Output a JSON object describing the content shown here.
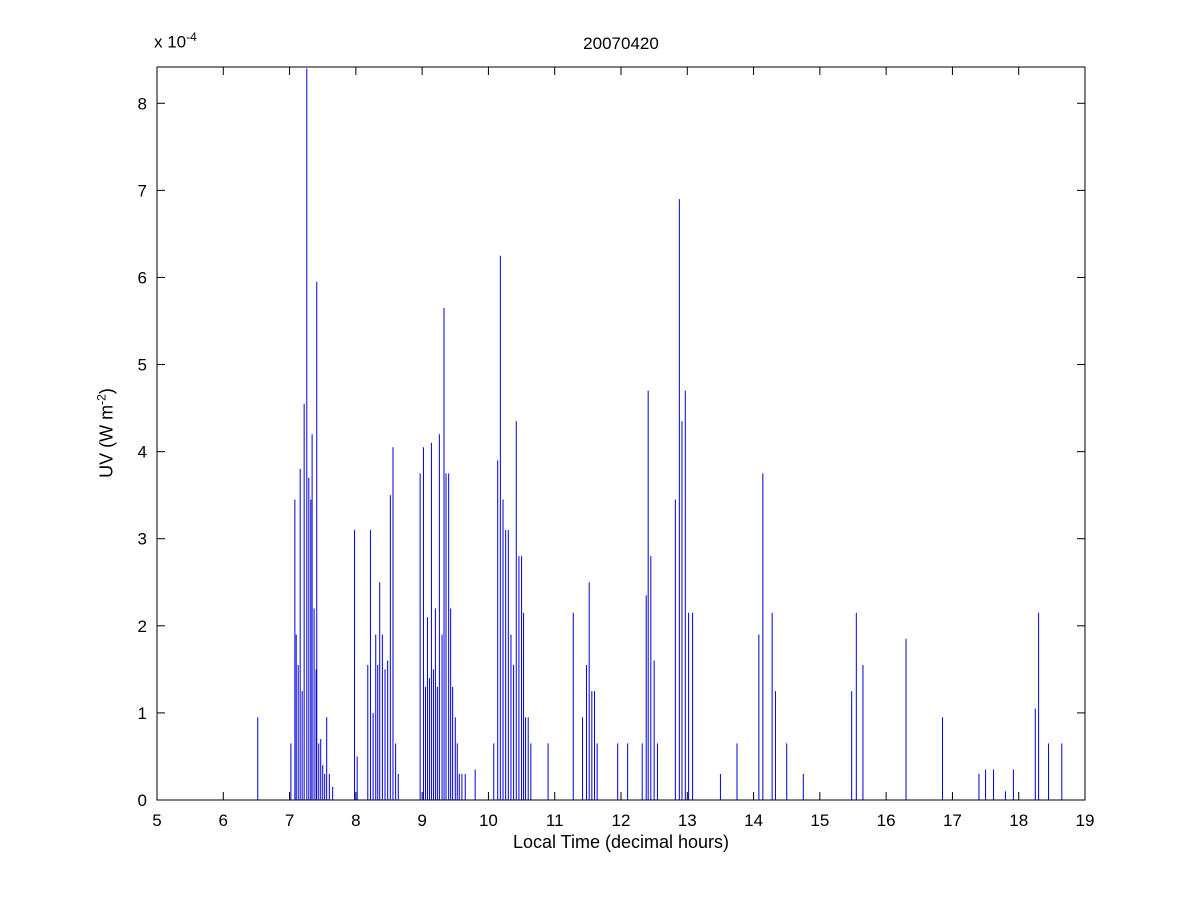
{
  "figure": {
    "title": "20070420",
    "xlabel": "Local Time (decimal hours)",
    "ylabel_pre": "UV (W m",
    "ylabel_sup": "-2",
    "ylabel_post": ")",
    "exponent_base": "x 10",
    "exponent_sup": "-4"
  },
  "chart_data": {
    "type": "stem",
    "title": "20070420",
    "xlabel": "Local Time (decimal hours)",
    "ylabel": "UV (W m^-2)",
    "y_unit": "1e-4 W m^-2",
    "xlim": [
      5,
      19
    ],
    "ylim": [
      0,
      8.4166
    ],
    "xticks": [
      5,
      6,
      7,
      8,
      9,
      10,
      11,
      12,
      13,
      14,
      15,
      16,
      17,
      18,
      19
    ],
    "yticks": [
      0,
      1,
      2,
      3,
      4,
      5,
      6,
      7,
      8
    ],
    "grid": false,
    "legend": false,
    "line_color": "#0000dd",
    "axis_color": "#000000",
    "points": [
      [
        6.52,
        0.95
      ],
      [
        7.02,
        0.65
      ],
      [
        7.08,
        3.45
      ],
      [
        7.1,
        1.9
      ],
      [
        7.13,
        1.55
      ],
      [
        7.16,
        3.8
      ],
      [
        7.19,
        1.25
      ],
      [
        7.22,
        4.55
      ],
      [
        7.26,
        8.4
      ],
      [
        7.29,
        3.7
      ],
      [
        7.32,
        3.45
      ],
      [
        7.34,
        4.2
      ],
      [
        7.37,
        2.2
      ],
      [
        7.4,
        1.5
      ],
      [
        7.41,
        5.95
      ],
      [
        7.44,
        0.65
      ],
      [
        7.47,
        0.7
      ],
      [
        7.5,
        0.4
      ],
      [
        7.53,
        0.3
      ],
      [
        7.56,
        0.95
      ],
      [
        7.6,
        0.3
      ],
      [
        7.65,
        0.15
      ],
      [
        7.98,
        3.1
      ],
      [
        8.02,
        0.5
      ],
      [
        8.18,
        1.55
      ],
      [
        8.22,
        3.1
      ],
      [
        8.26,
        1.0
      ],
      [
        8.3,
        1.9
      ],
      [
        8.33,
        1.55
      ],
      [
        8.36,
        2.5
      ],
      [
        8.4,
        1.9
      ],
      [
        8.44,
        1.5
      ],
      [
        8.48,
        1.6
      ],
      [
        8.52,
        3.5
      ],
      [
        8.56,
        4.05
      ],
      [
        8.6,
        0.65
      ],
      [
        8.64,
        0.3
      ],
      [
        8.97,
        3.75
      ],
      [
        9.02,
        4.05
      ],
      [
        9.05,
        1.3
      ],
      [
        9.08,
        2.1
      ],
      [
        9.11,
        1.4
      ],
      [
        9.14,
        4.1
      ],
      [
        9.17,
        1.5
      ],
      [
        9.2,
        2.2
      ],
      [
        9.23,
        1.3
      ],
      [
        9.26,
        4.2
      ],
      [
        9.3,
        1.9
      ],
      [
        9.33,
        5.65
      ],
      [
        9.36,
        3.75
      ],
      [
        9.4,
        3.75
      ],
      [
        9.43,
        2.2
      ],
      [
        9.46,
        1.3
      ],
      [
        9.5,
        0.95
      ],
      [
        9.53,
        0.65
      ],
      [
        9.56,
        0.3
      ],
      [
        9.6,
        0.3
      ],
      [
        9.65,
        0.3
      ],
      [
        9.8,
        0.35
      ],
      [
        10.08,
        0.65
      ],
      [
        10.14,
        3.9
      ],
      [
        10.18,
        6.25
      ],
      [
        10.22,
        3.45
      ],
      [
        10.26,
        3.1
      ],
      [
        10.3,
        3.1
      ],
      [
        10.34,
        1.9
      ],
      [
        10.38,
        1.55
      ],
      [
        10.42,
        4.35
      ],
      [
        10.46,
        2.8
      ],
      [
        10.5,
        2.8
      ],
      [
        10.53,
        2.15
      ],
      [
        10.56,
        0.95
      ],
      [
        10.6,
        0.95
      ],
      [
        10.64,
        0.65
      ],
      [
        10.9,
        0.65
      ],
      [
        11.28,
        2.15
      ],
      [
        11.42,
        0.95
      ],
      [
        11.48,
        1.55
      ],
      [
        11.52,
        2.5
      ],
      [
        11.56,
        1.25
      ],
      [
        11.6,
        1.25
      ],
      [
        11.64,
        0.65
      ],
      [
        11.95,
        0.65
      ],
      [
        12.1,
        0.65
      ],
      [
        12.32,
        0.65
      ],
      [
        12.38,
        2.35
      ],
      [
        12.41,
        4.7
      ],
      [
        12.45,
        2.8
      ],
      [
        12.5,
        1.6
      ],
      [
        12.55,
        0.65
      ],
      [
        12.82,
        3.45
      ],
      [
        12.88,
        6.9
      ],
      [
        12.92,
        4.35
      ],
      [
        12.97,
        4.7
      ],
      [
        13.02,
        2.15
      ],
      [
        13.08,
        2.15
      ],
      [
        13.5,
        0.3
      ],
      [
        13.75,
        0.65
      ],
      [
        14.08,
        1.9
      ],
      [
        14.14,
        3.75
      ],
      [
        14.28,
        2.15
      ],
      [
        14.33,
        1.25
      ],
      [
        14.5,
        0.65
      ],
      [
        14.75,
        0.3
      ],
      [
        15.48,
        1.25
      ],
      [
        15.55,
        2.15
      ],
      [
        15.65,
        1.55
      ],
      [
        16.3,
        1.85
      ],
      [
        16.85,
        0.95
      ],
      [
        17.4,
        0.3
      ],
      [
        17.5,
        0.35
      ],
      [
        17.62,
        0.35
      ],
      [
        17.8,
        0.1
      ],
      [
        17.92,
        0.35
      ],
      [
        18.25,
        1.05
      ],
      [
        18.3,
        2.15
      ],
      [
        18.45,
        0.65
      ],
      [
        18.65,
        0.65
      ]
    ]
  }
}
